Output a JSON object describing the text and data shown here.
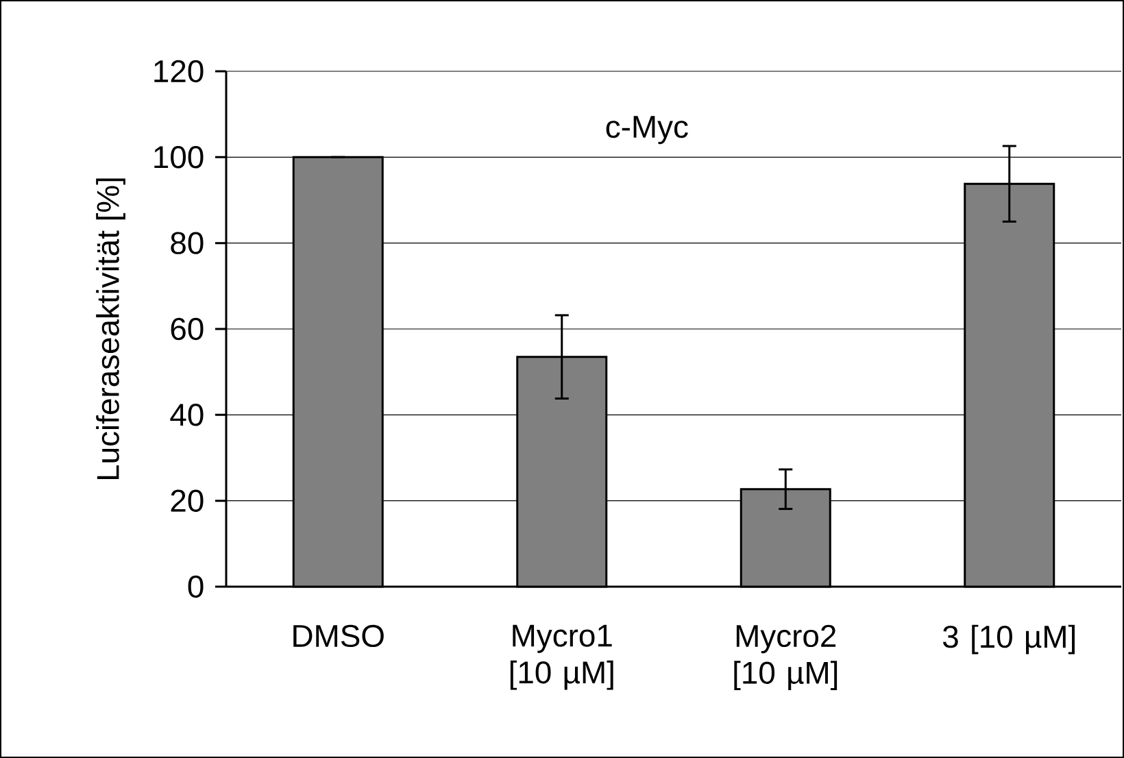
{
  "chart_data": {
    "type": "bar",
    "title": "c-Myc",
    "ylabel": "Luciferaseaktivität [%]",
    "categories": [
      "DMSO",
      "Mycro1 [10 µM]",
      "Mycro2 [10 µM]",
      "3 [10 µM]"
    ],
    "values": [
      100,
      53.5,
      22.7,
      93.8
    ],
    "color": "#808080",
    "errors": [
      0,
      9.7,
      4.6,
      8.8
    ],
    "ylim": [
      0,
      120
    ],
    "yticks": [
      0,
      20,
      40,
      60,
      80,
      100,
      120
    ],
    "grid": "y"
  }
}
